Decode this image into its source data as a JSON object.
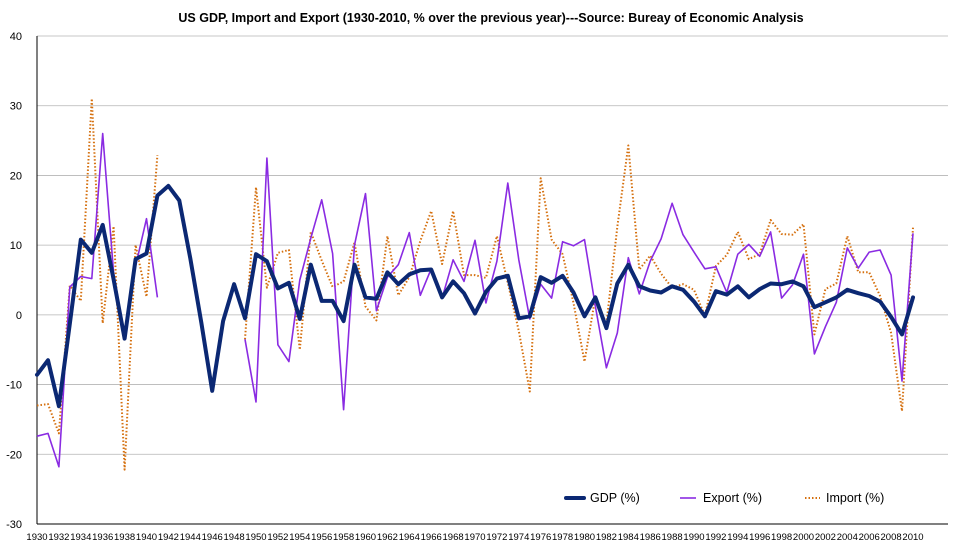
{
  "chart_data": {
    "type": "line",
    "title": "US GDP, Import and Export (1930-2010, % over the previous year)---Source: Bureay of Economic Analysis",
    "xlabel": "",
    "ylabel": "",
    "ylim": [
      -30,
      40
    ],
    "yticks": [
      -30,
      -20,
      -10,
      0,
      10,
      20,
      30,
      40
    ],
    "grid": true,
    "legend_position": "bottom-right",
    "categories": [
      1930,
      1931,
      1932,
      1933,
      1934,
      1935,
      1936,
      1937,
      1938,
      1939,
      1940,
      1941,
      1942,
      1943,
      1944,
      1945,
      1946,
      1947,
      1948,
      1949,
      1950,
      1951,
      1952,
      1953,
      1954,
      1955,
      1956,
      1957,
      1958,
      1959,
      1960,
      1961,
      1962,
      1963,
      1964,
      1965,
      1966,
      1967,
      1968,
      1969,
      1970,
      1971,
      1972,
      1973,
      1974,
      1975,
      1976,
      1977,
      1978,
      1979,
      1980,
      1981,
      1982,
      1983,
      1984,
      1985,
      1986,
      1987,
      1988,
      1989,
      1990,
      1991,
      1992,
      1993,
      1994,
      1995,
      1996,
      1997,
      1998,
      1999,
      2000,
      2001,
      2002,
      2003,
      2004,
      2005,
      2006,
      2007,
      2008,
      2009,
      2010
    ],
    "xtick_labels": [
      "1930",
      "1932",
      "1934",
      "1936",
      "1938",
      "1940",
      "1942",
      "1944",
      "1946",
      "1948",
      "1950",
      "1952",
      "1954",
      "1956",
      "1958",
      "1960",
      "1962",
      "1964",
      "1966",
      "1968",
      "1970",
      "1972",
      "1974",
      "1976",
      "1978",
      "1980",
      "1982",
      "1984",
      "1986",
      "1988",
      "1990",
      "1992",
      "1994",
      "1996",
      "1998",
      "2000",
      "2002",
      "2004",
      "2006",
      "2008",
      "2010"
    ],
    "series": [
      {
        "name": "GDP (%)",
        "color": "#0b2873",
        "style": "solid-thick",
        "values": [
          -8.6,
          -6.5,
          -13.1,
          -1.3,
          10.8,
          8.9,
          12.9,
          5.1,
          -3.4,
          8.0,
          8.8,
          17.1,
          18.5,
          16.4,
          8.1,
          -1.1,
          -10.9,
          -0.9,
          4.4,
          -0.5,
          8.7,
          7.7,
          3.8,
          4.6,
          -0.6,
          7.2,
          2.0,
          2.0,
          -0.9,
          7.2,
          2.5,
          2.3,
          6.1,
          4.4,
          5.8,
          6.4,
          6.5,
          2.5,
          4.8,
          3.1,
          0.2,
          3.3,
          5.2,
          5.6,
          -0.5,
          -0.2,
          5.4,
          4.6,
          5.6,
          3.2,
          -0.2,
          2.5,
          -1.9,
          4.5,
          7.2,
          4.1,
          3.5,
          3.2,
          4.1,
          3.6,
          1.9,
          -0.2,
          3.4,
          2.9,
          4.1,
          2.5,
          3.7,
          4.5,
          4.4,
          4.8,
          4.1,
          1.1,
          1.8,
          2.5,
          3.6,
          3.1,
          2.7,
          1.9,
          -0.3,
          -2.8,
          2.5
        ]
      },
      {
        "name": "Export (%)",
        "color": "#8a2be2",
        "style": "solid",
        "values": [
          -17.4,
          -17.0,
          -21.8,
          4.0,
          5.5,
          5.2,
          26.0,
          6.0,
          -3.0,
          7.0,
          13.8,
          2.5,
          null,
          null,
          null,
          null,
          null,
          null,
          null,
          -3.5,
          -12.5,
          22.5,
          -4.3,
          -6.7,
          5.0,
          11.0,
          16.5,
          8.8,
          -13.6,
          10.0,
          17.4,
          0.6,
          5.4,
          7.2,
          11.8,
          2.8,
          6.6,
          2.4,
          7.9,
          4.8,
          10.7,
          1.7,
          7.7,
          18.9,
          7.9,
          -0.6,
          4.4,
          2.4,
          10.5,
          9.9,
          10.8,
          1.2,
          -7.6,
          -2.6,
          8.2,
          3.0,
          7.7,
          10.9,
          16.0,
          11.5,
          9.0,
          6.6,
          6.9,
          3.2,
          8.7,
          10.1,
          8.4,
          11.9,
          2.4,
          4.3,
          8.7,
          -5.6,
          -1.7,
          1.8,
          9.6,
          6.7,
          9.0,
          9.3,
          5.7,
          -9.5,
          11.7
        ]
      },
      {
        "name": "Import (%)",
        "color": "#d5700f",
        "style": "dotted",
        "values": [
          -13.0,
          -12.8,
          -17.0,
          4.2,
          2.0,
          31.0,
          -1.2,
          12.7,
          -22.2,
          10.0,
          2.6,
          22.9,
          null,
          null,
          null,
          null,
          null,
          null,
          null,
          -3.5,
          18.3,
          3.9,
          8.9,
          9.3,
          -5.0,
          11.9,
          7.8,
          4.0,
          4.8,
          10.4,
          1.2,
          -0.8,
          11.3,
          2.8,
          5.4,
          10.6,
          14.9,
          7.3,
          14.9,
          5.7,
          5.7,
          5.3,
          11.3,
          4.6,
          -2.3,
          -11.0,
          19.6,
          10.8,
          8.7,
          1.7,
          -6.7,
          2.6,
          -1.3,
          12.6,
          24.3,
          6.5,
          8.5,
          5.9,
          3.9,
          4.4,
          3.6,
          -0.1,
          7.0,
          8.6,
          11.9,
          8.0,
          8.7,
          13.6,
          11.6,
          11.5,
          13.0,
          -2.8,
          3.7,
          4.5,
          11.3,
          6.1,
          6.1,
          2.7,
          -2.6,
          -13.8,
          12.5
        ]
      }
    ]
  }
}
